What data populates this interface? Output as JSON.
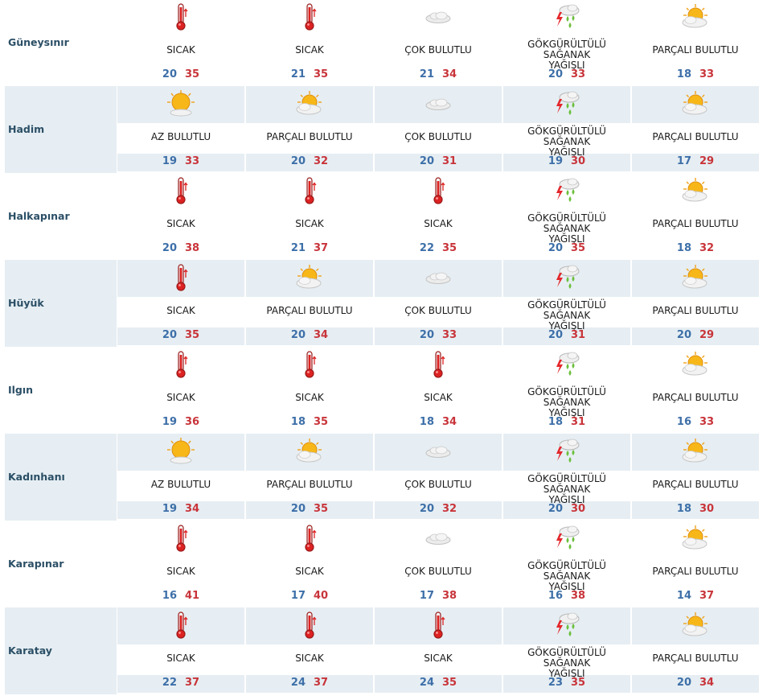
{
  "columns": 5,
  "rows": [
    {
      "district": "Güneysınır",
      "days": [
        {
          "icon": "thermometer-icon",
          "condition": "SICAK",
          "min": "20",
          "max": "35"
        },
        {
          "icon": "thermometer-icon",
          "condition": "SICAK",
          "min": "21",
          "max": "35"
        },
        {
          "icon": "cloud-icon",
          "condition": "ÇOK BULUTLU",
          "min": "21",
          "max": "34"
        },
        {
          "icon": "thunderstorm-icon",
          "condition": "GÖKGÜRÜLTÜLÜ SAĞANAK YAĞIŞLI",
          "min": "20",
          "max": "33"
        },
        {
          "icon": "partly-cloudy-icon",
          "condition": "PARÇALI BULUTLU",
          "min": "18",
          "max": "33"
        }
      ]
    },
    {
      "district": "Hadim",
      "days": [
        {
          "icon": "mostly-sunny-icon",
          "condition": "AZ BULUTLU",
          "min": "19",
          "max": "33"
        },
        {
          "icon": "partly-cloudy-icon",
          "condition": "PARÇALI BULUTLU",
          "min": "20",
          "max": "32"
        },
        {
          "icon": "cloud-icon",
          "condition": "ÇOK BULUTLU",
          "min": "20",
          "max": "31"
        },
        {
          "icon": "thunderstorm-icon",
          "condition": "GÖKGÜRÜLTÜLÜ SAĞANAK YAĞIŞLI",
          "min": "19",
          "max": "30"
        },
        {
          "icon": "partly-cloudy-icon",
          "condition": "PARÇALI BULUTLU",
          "min": "17",
          "max": "29"
        }
      ]
    },
    {
      "district": "Halkapınar",
      "days": [
        {
          "icon": "thermometer-icon",
          "condition": "SICAK",
          "min": "20",
          "max": "38"
        },
        {
          "icon": "thermometer-icon",
          "condition": "SICAK",
          "min": "21",
          "max": "37"
        },
        {
          "icon": "thermometer-icon",
          "condition": "SICAK",
          "min": "22",
          "max": "35"
        },
        {
          "icon": "thunderstorm-icon",
          "condition": "GÖKGÜRÜLTÜLÜ SAĞANAK YAĞIŞLI",
          "min": "20",
          "max": "35"
        },
        {
          "icon": "partly-cloudy-icon",
          "condition": "PARÇALI BULUTLU",
          "min": "18",
          "max": "32"
        }
      ]
    },
    {
      "district": "Hüyük",
      "days": [
        {
          "icon": "thermometer-icon",
          "condition": "SICAK",
          "min": "20",
          "max": "35"
        },
        {
          "icon": "partly-cloudy-icon",
          "condition": "PARÇALI BULUTLU",
          "min": "20",
          "max": "34"
        },
        {
          "icon": "cloud-icon",
          "condition": "ÇOK BULUTLU",
          "min": "20",
          "max": "33"
        },
        {
          "icon": "thunderstorm-icon",
          "condition": "GÖKGÜRÜLTÜLÜ SAĞANAK YAĞIŞLI",
          "min": "20",
          "max": "31"
        },
        {
          "icon": "partly-cloudy-icon",
          "condition": "PARÇALI BULUTLU",
          "min": "20",
          "max": "29"
        }
      ]
    },
    {
      "district": "Ilgın",
      "days": [
        {
          "icon": "thermometer-icon",
          "condition": "SICAK",
          "min": "19",
          "max": "36"
        },
        {
          "icon": "thermometer-icon",
          "condition": "SICAK",
          "min": "18",
          "max": "35"
        },
        {
          "icon": "thermometer-icon",
          "condition": "SICAK",
          "min": "18",
          "max": "34"
        },
        {
          "icon": "thunderstorm-icon",
          "condition": "GÖKGÜRÜLTÜLÜ SAĞANAK YAĞIŞLI",
          "min": "18",
          "max": "31"
        },
        {
          "icon": "partly-cloudy-icon",
          "condition": "PARÇALI BULUTLU",
          "min": "16",
          "max": "33"
        }
      ]
    },
    {
      "district": "Kadınhanı",
      "days": [
        {
          "icon": "mostly-sunny-icon",
          "condition": "AZ BULUTLU",
          "min": "19",
          "max": "34"
        },
        {
          "icon": "partly-cloudy-icon",
          "condition": "PARÇALI BULUTLU",
          "min": "20",
          "max": "35"
        },
        {
          "icon": "cloud-icon",
          "condition": "ÇOK BULUTLU",
          "min": "20",
          "max": "32"
        },
        {
          "icon": "thunderstorm-icon",
          "condition": "GÖKGÜRÜLTÜLÜ SAĞANAK YAĞIŞLI",
          "min": "20",
          "max": "30"
        },
        {
          "icon": "partly-cloudy-icon",
          "condition": "PARÇALI BULUTLU",
          "min": "18",
          "max": "30"
        }
      ]
    },
    {
      "district": "Karapınar",
      "days": [
        {
          "icon": "thermometer-icon",
          "condition": "SICAK",
          "min": "16",
          "max": "41"
        },
        {
          "icon": "thermometer-icon",
          "condition": "SICAK",
          "min": "17",
          "max": "40"
        },
        {
          "icon": "cloud-icon",
          "condition": "ÇOK BULUTLU",
          "min": "17",
          "max": "38"
        },
        {
          "icon": "thunderstorm-icon",
          "condition": "GÖKGÜRÜLTÜLÜ SAĞANAK YAĞIŞLI",
          "min": "16",
          "max": "38"
        },
        {
          "icon": "partly-cloudy-icon",
          "condition": "PARÇALI BULUTLU",
          "min": "14",
          "max": "37"
        }
      ]
    },
    {
      "district": "Karatay",
      "days": [
        {
          "icon": "thermometer-icon",
          "condition": "SICAK",
          "min": "22",
          "max": "37"
        },
        {
          "icon": "thermometer-icon",
          "condition": "SICAK",
          "min": "24",
          "max": "37"
        },
        {
          "icon": "thermometer-icon",
          "condition": "SICAK",
          "min": "24",
          "max": "35"
        },
        {
          "icon": "thunderstorm-icon",
          "condition": "GÖKGÜRÜLTÜLÜ SAĞANAK YAĞIŞLI",
          "min": "23",
          "max": "35"
        },
        {
          "icon": "partly-cloudy-icon",
          "condition": "PARÇALI BULUTLU",
          "min": "20",
          "max": "34"
        }
      ]
    }
  ],
  "colors": {
    "shaded_row": "#e6eef3",
    "district_text": "#2b4f66",
    "min_temp": "#3d6fa8",
    "max_temp": "#c8343a"
  }
}
